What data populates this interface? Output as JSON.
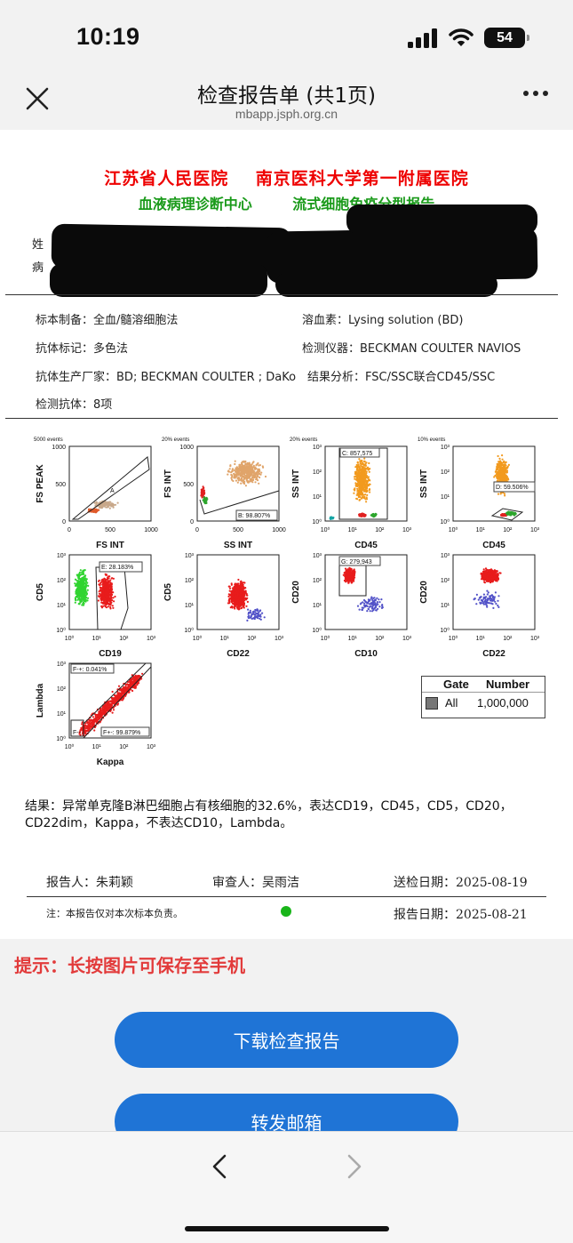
{
  "status": {
    "time": "10:19",
    "battery": "54"
  },
  "nav": {
    "title": "检查报告单 (共1页)",
    "url": "mbapp.jsph.org.cn"
  },
  "report": {
    "hospital": "江苏省人民医院    南京医科大学第一附属医院",
    "center": "血液病理诊断中心",
    "report_type": "流式细胞免疫分型报告",
    "partial_name_label": "姓",
    "partial_case_label": "病",
    "info": {
      "specimen_label": "标本制备：",
      "specimen": "全血/髓溶细胞法",
      "lysing_label": "溶血素：",
      "lysing": "Lysing solution (BD)",
      "marker_label": "抗体标记：",
      "marker": "多色法",
      "instrument_label": "检测仪器：",
      "instrument": "BECKMAN COULTER NAVIOS",
      "maker_label": "抗体生产厂家：",
      "maker": "BD; BECKMAN COULTER ; DaKo",
      "analysis_label": "结果分析：",
      "analysis": "FSC/SSC联合CD45/SSC",
      "antibody_label": "检测抗体：",
      "antibody": "8项"
    },
    "plots": [
      {
        "events": "5000 events",
        "x": "FS INT",
        "y": "FS PEAK",
        "gate": "A"
      },
      {
        "events": "20% events",
        "x": "SS INT",
        "y": "FS INT",
        "gate": "B: 98.807%"
      },
      {
        "events": "20% events",
        "x": "CD45",
        "y": "SS INT",
        "gate": "C: 857,575"
      },
      {
        "events": "10% events",
        "x": "CD45",
        "y": "SS INT",
        "gate": "D: 59.506%"
      },
      {
        "x": "CD19",
        "y": "CD5",
        "gate": "E: 28.183%"
      },
      {
        "x": "CD22",
        "y": "CD5"
      },
      {
        "x": "CD10",
        "y": "CD20",
        "gate": "G: 279,943"
      },
      {
        "x": "CD22",
        "y": "CD20"
      },
      {
        "x": "Kappa",
        "y": "Lambda",
        "gate_top": "F-+: 0.041%",
        "gate_bl": "F--",
        "gate_br": "F+-: 99.879%"
      }
    ],
    "gate_table": {
      "h1": "Gate",
      "h2": "Number",
      "row_gate": "All",
      "row_number": "1,000,000"
    },
    "conclusion": "结果：异常单克隆B淋巴细胞占有核细胞的32.6%，表达CD19，CD45，CD5，CD20，CD22dim，Kappa，不表达CD10，Lambda。",
    "reporter": "报告人：朱莉颖",
    "reviewer": "审查人：吴雨洁",
    "send_date": "送检日期：2025-08-19",
    "note": "注：本报告仅对本次标本负责。",
    "report_date": "报告日期：2025-08-21"
  },
  "tip": "提示：长按图片可保存至手机",
  "buttons": {
    "download": "下载检查报告",
    "email": "转发邮箱"
  }
}
